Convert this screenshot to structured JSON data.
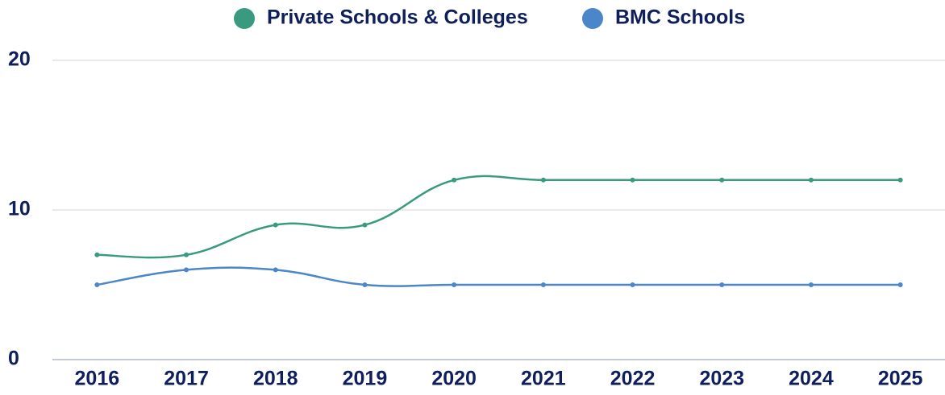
{
  "chart_data": {
    "type": "line",
    "categories": [
      "2016",
      "2017",
      "2018",
      "2019",
      "2020",
      "2021",
      "2022",
      "2023",
      "2024",
      "2025"
    ],
    "series": [
      {
        "name": "Private Schools & Colleges",
        "color": "#3a9a80",
        "values": [
          7,
          7,
          9,
          9,
          12,
          12,
          12,
          12,
          12,
          12
        ]
      },
      {
        "name": "BMC Schools",
        "color": "#4a86c8",
        "values": [
          5,
          6,
          6,
          5,
          5,
          5,
          5,
          5,
          5,
          5
        ]
      }
    ],
    "ylim": [
      0,
      20
    ],
    "yticks": [
      0,
      10,
      20
    ],
    "grid": true,
    "legend": "top"
  }
}
